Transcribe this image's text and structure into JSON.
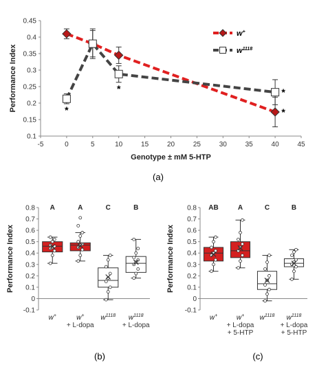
{
  "chart_data": [
    {
      "type": "line",
      "panel_label": "(a)",
      "xlabel": "Genotype ± mM 5-HTP",
      "ylabel": "Performance Index",
      "xlim": [
        -5,
        45
      ],
      "ylim": [
        0.1,
        0.45
      ],
      "xticks": [
        -5,
        0,
        5,
        10,
        15,
        20,
        25,
        30,
        35,
        40,
        45
      ],
      "yticks": [
        0.1,
        0.15,
        0.2,
        0.25,
        0.3,
        0.35,
        0.4,
        0.45
      ],
      "legend_position": "top-right",
      "series": [
        {
          "name": "w+",
          "name_base": "w",
          "name_sup": "+",
          "color": "#e02020",
          "marker": "diamond",
          "x": [
            0,
            5,
            10,
            40
          ],
          "y": [
            0.41,
            0.38,
            0.345,
            0.173
          ],
          "err": [
            0.015,
            0.04,
            0.025,
            0.045
          ],
          "annotations": [
            "",
            "",
            "",
            "*"
          ]
        },
        {
          "name": "w1118",
          "name_base": "w",
          "name_sup": "1118",
          "color": "#444444",
          "marker": "square",
          "x": [
            0,
            5,
            10,
            40
          ],
          "y": [
            0.213,
            0.38,
            0.288,
            0.233
          ],
          "err": [
            0.015,
            0.045,
            0.025,
            0.038
          ],
          "annotations": [
            "*",
            "",
            "*",
            "*"
          ]
        }
      ]
    },
    {
      "type": "box",
      "panel_label": "(b)",
      "ylabel": "Performance Index",
      "ylim": [
        -0.1,
        0.8
      ],
      "yticks": [
        -0.1,
        0,
        0.1,
        0.2,
        0.3,
        0.4,
        0.5,
        0.6,
        0.7,
        0.8
      ],
      "groups": [
        {
          "label_base": "w",
          "label_sup": "+",
          "label_line2": "",
          "label_line3": "",
          "letter": "A",
          "fill": "#d42020",
          "whisker_low": 0.31,
          "q1": 0.41,
          "median": 0.46,
          "q3": 0.5,
          "whisker_high": 0.54,
          "mean": 0.455,
          "points": [
            0.31,
            0.38,
            0.42,
            0.44,
            0.45,
            0.46,
            0.47,
            0.5,
            0.52,
            0.54
          ]
        },
        {
          "label_base": "w",
          "label_sup": "+",
          "label_line2": "+ L-dopa",
          "label_line3": "",
          "letter": "A",
          "fill": "#d42020",
          "whisker_low": 0.33,
          "q1": 0.42,
          "median": 0.47,
          "q3": 0.49,
          "whisker_high": 0.58,
          "mean": 0.465,
          "points": [
            0.33,
            0.38,
            0.43,
            0.45,
            0.47,
            0.48,
            0.5,
            0.55,
            0.58,
            0.64,
            0.71
          ]
        },
        {
          "label_base": "w",
          "label_sup": "1118",
          "label_line2": "",
          "label_line3": "",
          "letter": "C",
          "fill": "#ffffff",
          "whisker_low": -0.01,
          "q1": 0.1,
          "median": 0.16,
          "q3": 0.27,
          "whisker_high": 0.38,
          "mean": 0.19,
          "points": [
            -0.01,
            0.06,
            0.1,
            0.15,
            0.18,
            0.22,
            0.28,
            0.34,
            0.38
          ]
        },
        {
          "label_base": "w",
          "label_sup": "1118",
          "label_line2": "+ L-dopa",
          "label_line3": "",
          "letter": "B",
          "fill": "#ffffff",
          "whisker_low": 0.18,
          "q1": 0.23,
          "median": 0.31,
          "q3": 0.37,
          "whisker_high": 0.52,
          "mean": 0.32,
          "points": [
            0.18,
            0.22,
            0.26,
            0.3,
            0.32,
            0.34,
            0.36,
            0.4,
            0.44,
            0.52
          ]
        }
      ]
    },
    {
      "type": "box",
      "panel_label": "(c)",
      "ylabel": "Performance Index",
      "ylim": [
        -0.1,
        0.8
      ],
      "yticks": [
        -0.1,
        0,
        0.1,
        0.2,
        0.3,
        0.4,
        0.5,
        0.6,
        0.7,
        0.8
      ],
      "groups": [
        {
          "label_base": "w",
          "label_sup": "+",
          "label_line2": "",
          "label_line3": "",
          "letter": "AB",
          "fill": "#d42020",
          "whisker_low": 0.24,
          "q1": 0.33,
          "median": 0.4,
          "q3": 0.45,
          "whisker_high": 0.54,
          "mean": 0.39,
          "points": [
            0.24,
            0.3,
            0.34,
            0.38,
            0.4,
            0.42,
            0.45,
            0.5,
            0.54
          ]
        },
        {
          "label_base": "w",
          "label_sup": "+",
          "label_line2": "+ L-dopa",
          "label_line3": "+ 5-HTP",
          "letter": "A",
          "fill": "#d42020",
          "whisker_low": 0.27,
          "q1": 0.36,
          "median": 0.42,
          "q3": 0.5,
          "whisker_high": 0.69,
          "mean": 0.445,
          "points": [
            0.27,
            0.33,
            0.38,
            0.42,
            0.45,
            0.48,
            0.52,
            0.58,
            0.69
          ]
        },
        {
          "label_base": "w",
          "label_sup": "1118",
          "label_line2": "",
          "label_line3": "",
          "letter": "C",
          "fill": "#ffffff",
          "whisker_low": -0.02,
          "q1": 0.08,
          "median": 0.13,
          "q3": 0.24,
          "whisker_high": 0.38,
          "mean": 0.16,
          "points": [
            -0.02,
            0.04,
            0.08,
            0.12,
            0.16,
            0.2,
            0.26,
            0.32,
            0.38
          ]
        },
        {
          "label_base": "w",
          "label_sup": "1118",
          "label_line2": "+ L-dopa",
          "label_line3": "+ 5-HTP",
          "letter": "B",
          "fill": "#ffffff",
          "whisker_low": 0.17,
          "q1": 0.28,
          "median": 0.31,
          "q3": 0.35,
          "whisker_high": 0.43,
          "mean": 0.31,
          "points": [
            0.17,
            0.24,
            0.28,
            0.3,
            0.32,
            0.34,
            0.38,
            0.41,
            0.43
          ]
        }
      ]
    }
  ]
}
